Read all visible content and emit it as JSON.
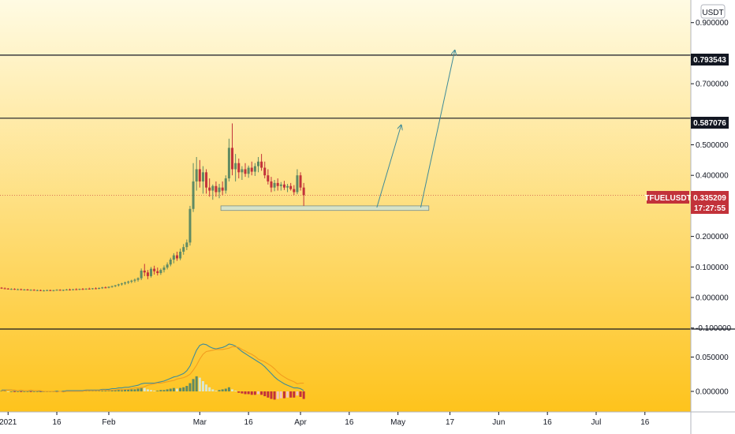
{
  "currency_label": "USDT",
  "symbol": "TFUELUSDT",
  "price_tag": "0.335209",
  "countdown": "17:27:55",
  "levels": [
    {
      "value": 0.793543,
      "label": "0.793543"
    },
    {
      "value": 0.587076,
      "label": "0.587076"
    }
  ],
  "colors": {
    "bg_top": "#fffbe3",
    "bg_bottom": "#fec31c",
    "up": "#5f8a63",
    "down": "#c2323a",
    "arrow": "#3e8a98",
    "macd": "#3f8c99",
    "signal": "#f29d1e",
    "tag": "#c2323a"
  },
  "chart_data": [
    {
      "type": "candlestick",
      "title": "",
      "y_unit": "USDT",
      "y_ticks": [
        "0.900000",
        "0.700000",
        "0.500000",
        "0.400000",
        "0.200000",
        "0.100000",
        "0.000000",
        "-0.100000"
      ],
      "y_tick_values": [
        0.9,
        0.7,
        0.5,
        0.4,
        0.2,
        0.1,
        0.0,
        -0.1
      ],
      "x_ticks": [
        "2021",
        "16",
        "Feb",
        "Mar",
        "16",
        "Apr",
        "16",
        "May",
        "17",
        "Jun",
        "16",
        "Jul",
        "16"
      ],
      "x_tick_dates": [
        "2021-01-01",
        "2021-01-16",
        "2021-02-01",
        "2021-03-01",
        "2021-03-16",
        "2021-04-01",
        "2021-04-16",
        "2021-05-01",
        "2021-05-17",
        "2021-06-01",
        "2021-06-16",
        "2021-07-01",
        "2021-07-16"
      ],
      "start_date": "2020-12-30",
      "candles": [
        [
          0.032,
          0.034,
          0.028,
          0.03
        ],
        [
          0.03,
          0.033,
          0.027,
          0.029
        ],
        [
          0.029,
          0.031,
          0.026,
          0.027
        ],
        [
          0.027,
          0.03,
          0.025,
          0.028
        ],
        [
          0.028,
          0.03,
          0.025,
          0.026
        ],
        [
          0.026,
          0.029,
          0.024,
          0.027
        ],
        [
          0.027,
          0.029,
          0.024,
          0.025
        ],
        [
          0.025,
          0.028,
          0.023,
          0.026
        ],
        [
          0.026,
          0.028,
          0.023,
          0.024
        ],
        [
          0.024,
          0.027,
          0.022,
          0.025
        ],
        [
          0.025,
          0.027,
          0.022,
          0.023
        ],
        [
          0.023,
          0.026,
          0.021,
          0.024
        ],
        [
          0.024,
          0.026,
          0.021,
          0.022
        ],
        [
          0.022,
          0.025,
          0.02,
          0.023
        ],
        [
          0.023,
          0.026,
          0.021,
          0.024
        ],
        [
          0.024,
          0.026,
          0.021,
          0.022
        ],
        [
          0.022,
          0.025,
          0.02,
          0.024
        ],
        [
          0.024,
          0.027,
          0.022,
          0.025
        ],
        [
          0.025,
          0.027,
          0.022,
          0.023
        ],
        [
          0.023,
          0.026,
          0.021,
          0.025
        ],
        [
          0.025,
          0.028,
          0.023,
          0.026
        ],
        [
          0.026,
          0.029,
          0.023,
          0.025
        ],
        [
          0.025,
          0.028,
          0.023,
          0.027
        ],
        [
          0.027,
          0.03,
          0.024,
          0.026
        ],
        [
          0.026,
          0.029,
          0.024,
          0.028
        ],
        [
          0.028,
          0.031,
          0.025,
          0.027
        ],
        [
          0.027,
          0.03,
          0.025,
          0.029
        ],
        [
          0.029,
          0.032,
          0.026,
          0.028
        ],
        [
          0.028,
          0.031,
          0.026,
          0.03
        ],
        [
          0.03,
          0.033,
          0.027,
          0.029
        ],
        [
          0.029,
          0.033,
          0.027,
          0.031
        ],
        [
          0.031,
          0.035,
          0.028,
          0.033
        ],
        [
          0.033,
          0.036,
          0.03,
          0.032
        ],
        [
          0.032,
          0.036,
          0.03,
          0.035
        ],
        [
          0.035,
          0.039,
          0.032,
          0.037
        ],
        [
          0.037,
          0.041,
          0.034,
          0.04
        ],
        [
          0.04,
          0.045,
          0.036,
          0.043
        ],
        [
          0.043,
          0.048,
          0.039,
          0.046
        ],
        [
          0.046,
          0.052,
          0.041,
          0.049
        ],
        [
          0.049,
          0.055,
          0.044,
          0.052
        ],
        [
          0.052,
          0.058,
          0.047,
          0.055
        ],
        [
          0.055,
          0.062,
          0.049,
          0.058
        ],
        [
          0.058,
          0.066,
          0.052,
          0.063
        ],
        [
          0.063,
          0.095,
          0.057,
          0.088
        ],
        [
          0.088,
          0.11,
          0.07,
          0.082
        ],
        [
          0.082,
          0.09,
          0.06,
          0.07
        ],
        [
          0.07,
          0.1,
          0.065,
          0.094
        ],
        [
          0.094,
          0.104,
          0.075,
          0.086
        ],
        [
          0.086,
          0.098,
          0.072,
          0.08
        ],
        [
          0.08,
          0.095,
          0.074,
          0.09
        ],
        [
          0.09,
          0.105,
          0.082,
          0.098
        ],
        [
          0.098,
          0.115,
          0.092,
          0.108
        ],
        [
          0.108,
          0.13,
          0.102,
          0.124
        ],
        [
          0.124,
          0.145,
          0.112,
          0.138
        ],
        [
          0.138,
          0.15,
          0.12,
          0.128
        ],
        [
          0.128,
          0.16,
          0.122,
          0.15
        ],
        [
          0.15,
          0.175,
          0.14,
          0.165
        ],
        [
          0.165,
          0.19,
          0.155,
          0.18
        ],
        [
          0.18,
          0.3,
          0.17,
          0.29
        ],
        [
          0.29,
          0.44,
          0.28,
          0.38
        ],
        [
          0.38,
          0.46,
          0.35,
          0.42
        ],
        [
          0.42,
          0.45,
          0.36,
          0.38
        ],
        [
          0.38,
          0.43,
          0.34,
          0.41
        ],
        [
          0.41,
          0.42,
          0.34,
          0.36
        ],
        [
          0.36,
          0.39,
          0.33,
          0.35
        ],
        [
          0.35,
          0.37,
          0.32,
          0.365
        ],
        [
          0.365,
          0.38,
          0.33,
          0.345
        ],
        [
          0.345,
          0.372,
          0.325,
          0.36
        ],
        [
          0.36,
          0.38,
          0.335,
          0.35
        ],
        [
          0.35,
          0.4,
          0.34,
          0.39
        ],
        [
          0.39,
          0.52,
          0.38,
          0.49
        ],
        [
          0.49,
          0.57,
          0.4,
          0.42
        ],
        [
          0.42,
          0.47,
          0.38,
          0.44
        ],
        [
          0.44,
          0.455,
          0.39,
          0.41
        ],
        [
          0.41,
          0.43,
          0.385,
          0.42
        ],
        [
          0.42,
          0.44,
          0.395,
          0.405
        ],
        [
          0.405,
          0.432,
          0.392,
          0.425
        ],
        [
          0.425,
          0.445,
          0.4,
          0.412
        ],
        [
          0.412,
          0.44,
          0.398,
          0.43
        ],
        [
          0.43,
          0.46,
          0.41,
          0.445
        ],
        [
          0.445,
          0.47,
          0.415,
          0.425
        ],
        [
          0.425,
          0.445,
          0.39,
          0.4
        ],
        [
          0.4,
          0.42,
          0.37,
          0.38
        ],
        [
          0.38,
          0.395,
          0.345,
          0.36
        ],
        [
          0.36,
          0.385,
          0.348,
          0.375
        ],
        [
          0.375,
          0.39,
          0.35,
          0.365
        ],
        [
          0.365,
          0.378,
          0.35,
          0.37
        ],
        [
          0.37,
          0.382,
          0.352,
          0.36
        ],
        [
          0.36,
          0.372,
          0.345,
          0.365
        ],
        [
          0.365,
          0.375,
          0.35,
          0.355
        ],
        [
          0.355,
          0.368,
          0.335,
          0.345
        ],
        [
          0.345,
          0.42,
          0.338,
          0.4
        ],
        [
          0.4,
          0.41,
          0.35,
          0.36
        ],
        [
          0.36,
          0.375,
          0.3,
          0.335
        ]
      ]
    },
    {
      "type": "bar+line",
      "title": "",
      "y_ticks": [
        "0.050000",
        "0.000000"
      ],
      "y_tick_values": [
        0.05,
        0.0
      ],
      "series": [
        {
          "kind": "histogram",
          "values": [
            0.001,
            0.001,
            0.0,
            0.0,
            -0.001,
            0.0,
            -0.001,
            0.0,
            0.0,
            -0.001,
            0.0,
            0.0,
            -0.001,
            0.0,
            0.0,
            0.0,
            0.0,
            0.001,
            0.0,
            0.001,
            0.001,
            0.001,
            0.001,
            0.001,
            0.001,
            0.001,
            0.001,
            0.001,
            0.001,
            0.001,
            0.001,
            0.001,
            0.001,
            0.002,
            0.002,
            0.002,
            0.002,
            0.003,
            0.003,
            0.003,
            0.003,
            0.003,
            0.004,
            0.006,
            0.005,
            0.003,
            0.002,
            0.001,
            0.001,
            0.002,
            0.002,
            0.003,
            0.004,
            0.005,
            0.004,
            0.005,
            0.006,
            0.008,
            0.012,
            0.018,
            0.022,
            0.02,
            0.015,
            0.01,
            0.006,
            0.003,
            0.001,
            0.002,
            0.003,
            0.004,
            0.006,
            0.003,
            0.001,
            -0.002,
            -0.003,
            -0.004,
            -0.004,
            -0.005,
            -0.005,
            -0.004,
            -0.005,
            -0.007,
            -0.009,
            -0.011,
            -0.012,
            -0.011,
            -0.01,
            -0.01,
            -0.009,
            -0.009,
            -0.009,
            -0.006,
            -0.008,
            -0.011
          ]
        },
        {
          "kind": "line",
          "values": [
            0.002,
            0.002,
            0.002,
            0.002,
            0.001,
            0.001,
            0.001,
            0.001,
            0.001,
            0.001,
            0.001,
            0.001,
            0.0,
            0.0,
            0.0,
            0.0,
            0.0,
            0.0,
            0.0,
            0.0,
            0.001,
            0.001,
            0.001,
            0.001,
            0.001,
            0.001,
            0.002,
            0.002,
            0.002,
            0.002,
            0.002,
            0.003,
            0.003,
            0.003,
            0.004,
            0.004,
            0.005,
            0.005,
            0.006,
            0.006,
            0.007,
            0.008,
            0.009,
            0.011,
            0.012,
            0.012,
            0.012,
            0.012,
            0.013,
            0.014,
            0.015,
            0.017,
            0.019,
            0.021,
            0.022,
            0.024,
            0.026,
            0.03,
            0.037,
            0.049,
            0.06,
            0.067,
            0.069,
            0.068,
            0.065,
            0.063,
            0.062,
            0.063,
            0.064,
            0.066,
            0.069,
            0.068,
            0.066,
            0.062,
            0.058,
            0.055,
            0.052,
            0.049,
            0.046,
            0.043,
            0.04,
            0.036,
            0.031,
            0.026,
            0.021,
            0.017,
            0.014,
            0.011,
            0.009,
            0.007,
            0.005,
            0.005,
            0.004,
            0.001
          ]
        },
        {
          "kind": "line",
          "values": [
            0.001,
            0.001,
            0.002,
            0.002,
            0.002,
            0.001,
            0.002,
            0.001,
            0.001,
            0.002,
            0.001,
            0.001,
            0.001,
            0.0,
            0.0,
            0.0,
            0.0,
            -0.001,
            0.0,
            -0.001,
            0.0,
            0.0,
            0.0,
            0.0,
            0.0,
            0.0,
            0.001,
            0.001,
            0.001,
            0.001,
            0.001,
            0.002,
            0.002,
            0.001,
            0.002,
            0.002,
            0.003,
            0.002,
            0.003,
            0.003,
            0.004,
            0.005,
            0.005,
            0.005,
            0.007,
            0.009,
            0.01,
            0.011,
            0.012,
            0.012,
            0.013,
            0.014,
            0.015,
            0.016,
            0.018,
            0.019,
            0.02,
            0.022,
            0.025,
            0.031,
            0.038,
            0.047,
            0.054,
            0.058,
            0.059,
            0.06,
            0.061,
            0.061,
            0.061,
            0.062,
            0.063,
            0.065,
            0.065,
            0.064,
            0.061,
            0.059,
            0.056,
            0.054,
            0.051,
            0.047,
            0.045,
            0.043,
            0.04,
            0.037,
            0.033,
            0.028,
            0.024,
            0.021,
            0.018,
            0.016,
            0.014,
            0.011,
            0.012,
            0.012
          ]
        }
      ]
    }
  ]
}
